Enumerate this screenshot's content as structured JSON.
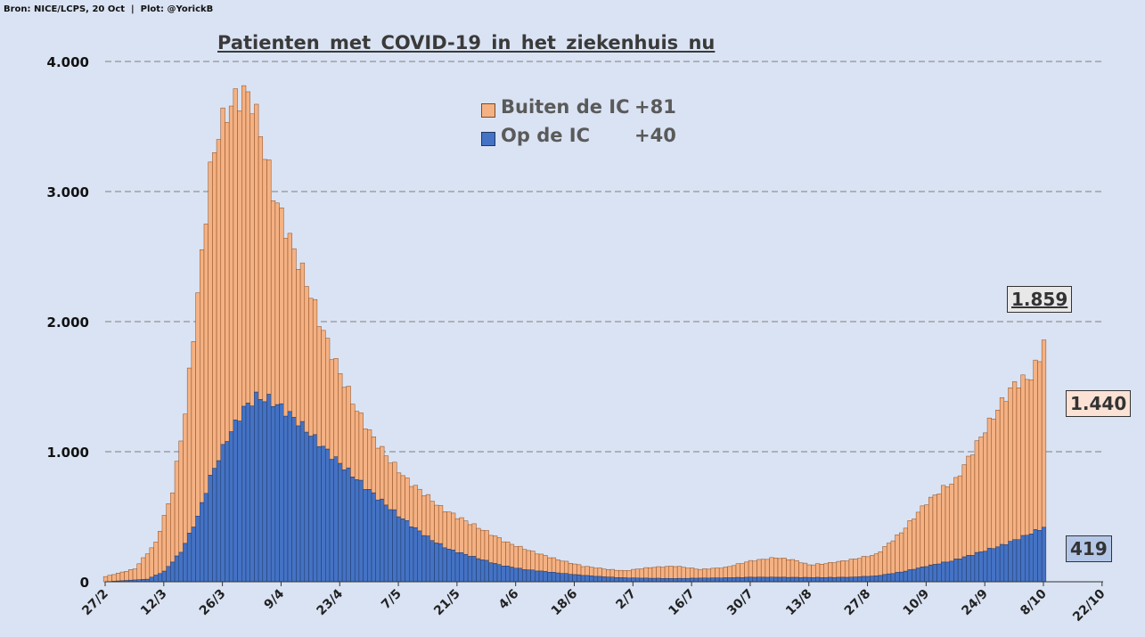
{
  "source": "Bron: NICE/LCPS, 20 Oct  |  Plot: @YorickB",
  "chart_data": {
    "type": "bar",
    "stacked": true,
    "title": "Patienten  met COVID-19  in het ziekenhuis  nu",
    "ylim": [
      0,
      4000
    ],
    "yticks": [
      0,
      1000,
      2000,
      3000,
      4000
    ],
    "ytick_labels": [
      "0",
      "1.000",
      "2.000",
      "3.000",
      "4.000"
    ],
    "x_tick_labels": [
      "27/2",
      "12/3",
      "26/3",
      "9/4",
      "23/4",
      "7/5",
      "21/5",
      "4/6",
      "18/6",
      "2/7",
      "16/7",
      "30/7",
      "13/8",
      "27/8",
      "10/9",
      "24/9",
      "8/10",
      "22/10"
    ],
    "grid": "horizontal dashed",
    "legend_position": "top-center",
    "x_start": "27/2",
    "x_end": "20/10",
    "series": [
      {
        "name": "Buiten de IC",
        "delta": "+81",
        "color": "#f4b183",
        "stroke": "#8a4a1e",
        "total_anchors": [
          [
            0,
            40
          ],
          [
            7,
            100
          ],
          [
            12,
            300
          ],
          [
            16,
            700
          ],
          [
            19,
            1300
          ],
          [
            22,
            2200
          ],
          [
            25,
            3150
          ],
          [
            27,
            3470
          ],
          [
            30,
            3670
          ],
          [
            33,
            3760
          ],
          [
            35,
            3700
          ],
          [
            37,
            3450
          ],
          [
            40,
            3000
          ],
          [
            44,
            2630
          ],
          [
            48,
            2300
          ],
          [
            52,
            1920
          ],
          [
            56,
            1600
          ],
          [
            60,
            1320
          ],
          [
            64,
            1100
          ],
          [
            68,
            930
          ],
          [
            72,
            780
          ],
          [
            76,
            680
          ],
          [
            80,
            570
          ],
          [
            84,
            500
          ],
          [
            90,
            400
          ],
          [
            96,
            300
          ],
          [
            102,
            230
          ],
          [
            108,
            170
          ],
          [
            114,
            120
          ],
          [
            120,
            95
          ],
          [
            124,
            85
          ],
          [
            130,
            110
          ],
          [
            136,
            120
          ],
          [
            142,
            95
          ],
          [
            148,
            110
          ],
          [
            154,
            160
          ],
          [
            160,
            185
          ],
          [
            164,
            170
          ],
          [
            168,
            130
          ],
          [
            172,
            140
          ],
          [
            178,
            170
          ],
          [
            184,
            210
          ],
          [
            190,
            380
          ],
          [
            196,
            610
          ],
          [
            200,
            720
          ],
          [
            203,
            780
          ],
          [
            206,
            950
          ],
          [
            210,
            1170
          ],
          [
            214,
            1380
          ],
          [
            217,
            1520
          ],
          [
            221,
            1580
          ],
          [
            223,
            1730
          ],
          [
            224,
            1859
          ]
        ]
      },
      {
        "name": "Op de IC",
        "delta": "+40",
        "color": "#4472c4",
        "stroke": "#1f3864",
        "anchors": [
          [
            0,
            0
          ],
          [
            10,
            20
          ],
          [
            14,
            80
          ],
          [
            18,
            230
          ],
          [
            22,
            500
          ],
          [
            25,
            800
          ],
          [
            29,
            1100
          ],
          [
            33,
            1330
          ],
          [
            36,
            1420
          ],
          [
            39,
            1400
          ],
          [
            42,
            1340
          ],
          [
            46,
            1230
          ],
          [
            50,
            1100
          ],
          [
            54,
            970
          ],
          [
            58,
            850
          ],
          [
            62,
            730
          ],
          [
            66,
            620
          ],
          [
            70,
            510
          ],
          [
            74,
            410
          ],
          [
            78,
            320
          ],
          [
            82,
            250
          ],
          [
            88,
            190
          ],
          [
            94,
            130
          ],
          [
            100,
            95
          ],
          [
            106,
            75
          ],
          [
            112,
            55
          ],
          [
            118,
            40
          ],
          [
            124,
            30
          ],
          [
            130,
            27
          ],
          [
            136,
            25
          ],
          [
            142,
            28
          ],
          [
            148,
            30
          ],
          [
            154,
            35
          ],
          [
            160,
            35
          ],
          [
            166,
            33
          ],
          [
            172,
            33
          ],
          [
            178,
            35
          ],
          [
            184,
            45
          ],
          [
            190,
            75
          ],
          [
            196,
            120
          ],
          [
            202,
            160
          ],
          [
            208,
            220
          ],
          [
            214,
            280
          ],
          [
            220,
            360
          ],
          [
            224,
            419
          ]
        ]
      }
    ],
    "callouts": {
      "total": "1.859",
      "buiten": "1.440",
      "op": "419"
    }
  }
}
